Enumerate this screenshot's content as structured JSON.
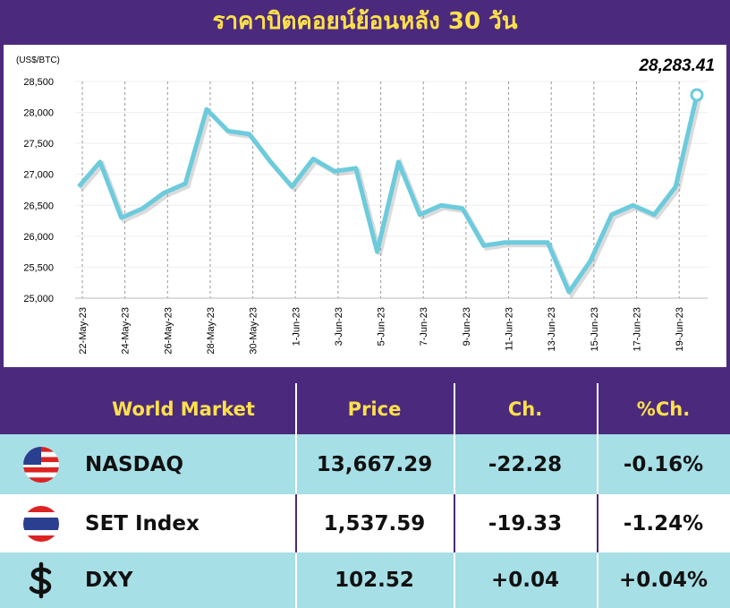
{
  "chart_data": {
    "type": "line",
    "title": "ราคาบิตคอยน์ย้อนหลัง 30 วัน",
    "y_label": "(US$/BTC)",
    "categories": [
      "22-May-23",
      null,
      "24-May-23",
      null,
      "26-May-23",
      null,
      "28-May-23",
      null,
      "30-May-23",
      null,
      "1-Jun-23",
      null,
      "3-Jun-23",
      null,
      "5-Jun-23",
      null,
      "7-Jun-23",
      null,
      "9-Jun-23",
      null,
      "11-Jun-23",
      null,
      "13-Jun-23",
      null,
      "15-Jun-23",
      null,
      "17-Jun-23",
      null,
      "19-Jun-23",
      null
    ],
    "series": [
      {
        "name": "BTC",
        "color": "#6ccbdc",
        "values": [
          26800,
          27200,
          26300,
          26450,
          26700,
          26850,
          28050,
          27700,
          27650,
          27200,
          26800,
          27250,
          27050,
          27100,
          25750,
          27200,
          26350,
          26500,
          26450,
          25850,
          25900,
          25900,
          25900,
          25100,
          25600,
          26350,
          26500,
          26350,
          26800,
          28283.41
        ],
        "value_labels": [
          null,
          null,
          null,
          null,
          null,
          null,
          null,
          null,
          null,
          null,
          null,
          null,
          null,
          null,
          null,
          null,
          null,
          null,
          null,
          null,
          null,
          null,
          null,
          null,
          null,
          null,
          null,
          null,
          null,
          "28,283.41"
        ]
      }
    ],
    "ylim": [
      25000,
      28500
    ],
    "yticks": [
      {
        "value": 25000,
        "label": "25,000"
      },
      {
        "value": 25500,
        "label": "25,500"
      },
      {
        "value": 26000,
        "label": "26,000"
      },
      {
        "value": 26500,
        "label": "26,500"
      },
      {
        "value": 27000,
        "label": "27,000"
      },
      {
        "value": 27500,
        "label": "27,500"
      },
      {
        "value": 28000,
        "label": "28,000"
      },
      {
        "value": 28500,
        "label": "28,500"
      }
    ],
    "grid": true
  },
  "table": {
    "header": [
      "World Market",
      "Price",
      "Ch.",
      "%Ch."
    ],
    "rows": [
      [
        "NASDAQ",
        "13,667.29",
        "-22.28",
        "-0.16%"
      ],
      [
        "SET Index",
        "1,537.59",
        "-19.33",
        "-1.24%"
      ],
      [
        "DXY",
        "102.52",
        "+0.04",
        "+0.04%"
      ]
    ]
  }
}
